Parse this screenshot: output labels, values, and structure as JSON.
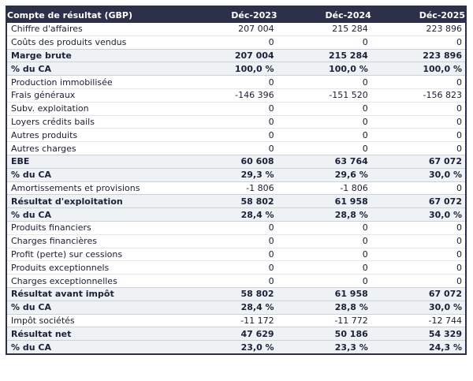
{
  "table": {
    "title": "Compte de résultat (GBP)",
    "currency": "GBP",
    "columns": [
      "Déc-2023",
      "Déc-2024",
      "Déc-2025"
    ],
    "rows": [
      {
        "label": "Chiffre d'affaires",
        "values": [
          "207 004",
          "215 284",
          "223 896"
        ],
        "style": "normal"
      },
      {
        "label": "Coûts des produits vendus",
        "values": [
          "0",
          "0",
          "0"
        ],
        "style": "normal"
      },
      {
        "label": "Marge brute",
        "values": [
          "207 004",
          "215 284",
          "223 896"
        ],
        "style": "total"
      },
      {
        "label": "% du CA",
        "values": [
          "100,0 %",
          "100,0 %",
          "100,0 %"
        ],
        "style": "total"
      },
      {
        "label": "Production immobilisée",
        "values": [
          "0",
          "0",
          "0"
        ],
        "style": "normal"
      },
      {
        "label": "Frais généraux",
        "values": [
          "-146 396",
          "-151 520",
          "-156 823"
        ],
        "style": "normal"
      },
      {
        "label": "Subv. exploitation",
        "values": [
          "0",
          "0",
          "0"
        ],
        "style": "normal"
      },
      {
        "label": "Loyers crédits bails",
        "values": [
          "0",
          "0",
          "0"
        ],
        "style": "normal"
      },
      {
        "label": "Autres produits",
        "values": [
          "0",
          "0",
          "0"
        ],
        "style": "normal"
      },
      {
        "label": "Autres charges",
        "values": [
          "0",
          "0",
          "0"
        ],
        "style": "normal"
      },
      {
        "label": "EBE",
        "values": [
          "60 608",
          "63 764",
          "67 072"
        ],
        "style": "total"
      },
      {
        "label": "% du CA",
        "values": [
          "29,3 %",
          "29,6 %",
          "30,0 %"
        ],
        "style": "total"
      },
      {
        "label": "Amortissements et provisions",
        "values": [
          "-1 806",
          "-1 806",
          "0"
        ],
        "style": "normal"
      },
      {
        "label": "Résultat d'exploitation",
        "values": [
          "58 802",
          "61 958",
          "67 072"
        ],
        "style": "total"
      },
      {
        "label": "% du CA",
        "values": [
          "28,4 %",
          "28,8 %",
          "30,0 %"
        ],
        "style": "total"
      },
      {
        "label": "Produits financiers",
        "values": [
          "0",
          "0",
          "0"
        ],
        "style": "normal"
      },
      {
        "label": "Charges financières",
        "values": [
          "0",
          "0",
          "0"
        ],
        "style": "normal"
      },
      {
        "label": "Profit (perte) sur cessions",
        "values": [
          "0",
          "0",
          "0"
        ],
        "style": "normal"
      },
      {
        "label": "Produits exceptionnels",
        "values": [
          "0",
          "0",
          "0"
        ],
        "style": "normal"
      },
      {
        "label": "Charges exceptionnelles",
        "values": [
          "0",
          "0",
          "0"
        ],
        "style": "normal"
      },
      {
        "label": "Résultat avant impôt",
        "values": [
          "58 802",
          "61 958",
          "67 072"
        ],
        "style": "total"
      },
      {
        "label": "% du CA",
        "values": [
          "28,4 %",
          "28,8 %",
          "30,0 %"
        ],
        "style": "total"
      },
      {
        "label": "Impôt sociétés",
        "values": [
          "-11 172",
          "-11 772",
          "-12 744"
        ],
        "style": "normal"
      },
      {
        "label": "Résultat net",
        "values": [
          "47 629",
          "50 186",
          "54 329"
        ],
        "style": "total"
      },
      {
        "label": "% du CA",
        "values": [
          "23,0 %",
          "23,3 %",
          "24,3 %"
        ],
        "style": "total"
      }
    ],
    "colors": {
      "header_bg": "#2d3049",
      "header_text": "#ffffff",
      "total_row_bg": "#eef2f5",
      "body_text": "#1b1d33",
      "outer_border": "#2c3047",
      "row_divider": "#e3e6ea"
    }
  }
}
